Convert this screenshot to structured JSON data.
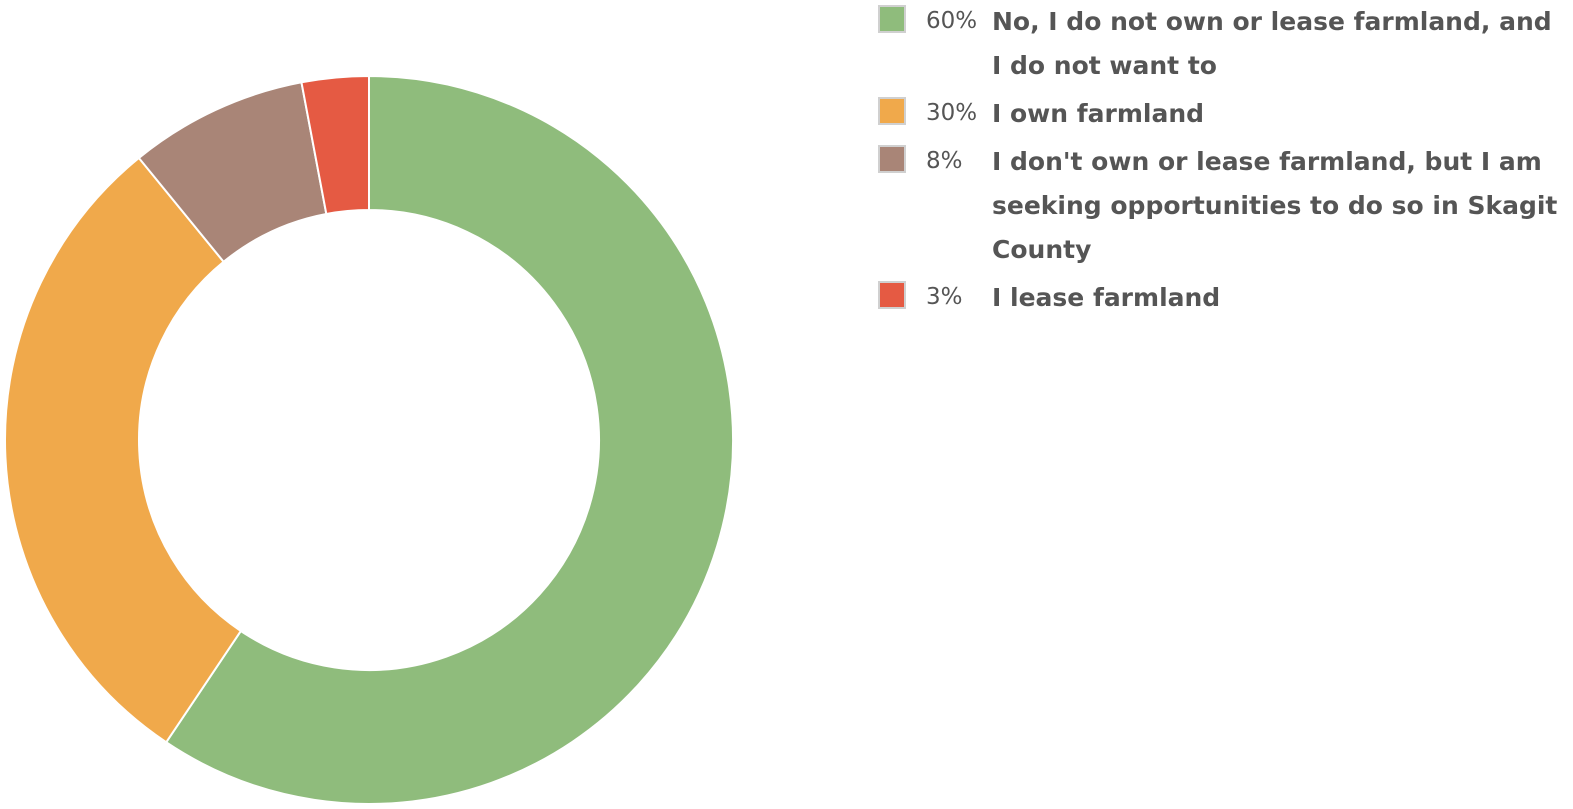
{
  "chart_data": {
    "type": "donut",
    "categories": [
      "No, I do not own or lease farmland, and I do not want to",
      "I own farmland",
      "I don't own or lease farmland, but I am seeking opportunities to do so in Skagit County",
      "I lease farmland"
    ],
    "values": [
      60,
      30,
      8,
      3
    ],
    "value_labels": [
      "60%",
      "30%",
      "8%",
      "3%"
    ],
    "colors": [
      "#8fbc7c",
      "#f0a94b",
      "#a98577",
      "#e55a43"
    ]
  }
}
